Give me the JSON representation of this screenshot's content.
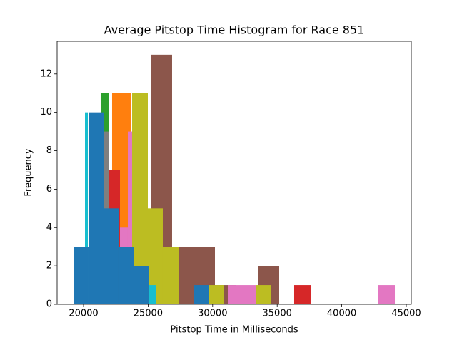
{
  "chart_data": {
    "type": "histogram",
    "title": "Average Pitstop Time Histogram for Race 851",
    "xlabel": "Pitstop Time in Milliseconds",
    "ylabel": "Frequency",
    "xlim": [
      17954,
      45387
    ],
    "ylim": [
      0,
      13.7
    ],
    "xticks": [
      20000,
      25000,
      30000,
      35000,
      40000,
      45000
    ],
    "yticks": [
      0,
      2,
      4,
      6,
      8,
      10,
      12
    ],
    "series": [
      {
        "color": "#ff7f0e",
        "bins": [
          22212,
          23650
        ],
        "values": [
          11
        ]
      },
      {
        "color": "#2ca02c",
        "bins": [
          21327,
          21991
        ],
        "values": [
          11
        ]
      },
      {
        "color": "#d62728",
        "bins": [
          21991,
          22821,
          36316,
          37588
        ],
        "values": [
          7,
          0,
          1
        ]
      },
      {
        "color": "#8c564b",
        "bins": [
          25199,
          26858,
          28518,
          30177,
          31836,
          33496,
          35155
        ],
        "values": [
          13,
          3,
          3,
          1,
          0,
          2
        ]
      },
      {
        "color": "#e377c2",
        "bins": [
          22821,
          23429,
          23761,
          31228,
          33330,
          42843,
          44115
        ],
        "values": [
          4,
          9,
          0,
          1,
          0,
          1
        ]
      },
      {
        "color": "#7f7f7f",
        "bins": [
          21549,
          21991
        ],
        "values": [
          9
        ]
      },
      {
        "color": "#bcbd22",
        "bins": [
          23761,
          24978,
          26139,
          27356,
          28518,
          29679,
          30896,
          32113,
          33330,
          34491
        ],
        "values": [
          11,
          5,
          3,
          0,
          0,
          1,
          0,
          0,
          1
        ]
      },
      {
        "color": "#17becf",
        "bins": [
          20111,
          20332,
          25033,
          25586
        ],
        "values": [
          10,
          0,
          1
        ]
      },
      {
        "color": "#1f77b4",
        "bins": [
          19226,
          20387,
          21549,
          22710,
          23872,
          25033,
          26195,
          27356,
          28518,
          29679
        ],
        "values": [
          3,
          10,
          5,
          3,
          2,
          0,
          0,
          0,
          1
        ]
      }
    ]
  }
}
